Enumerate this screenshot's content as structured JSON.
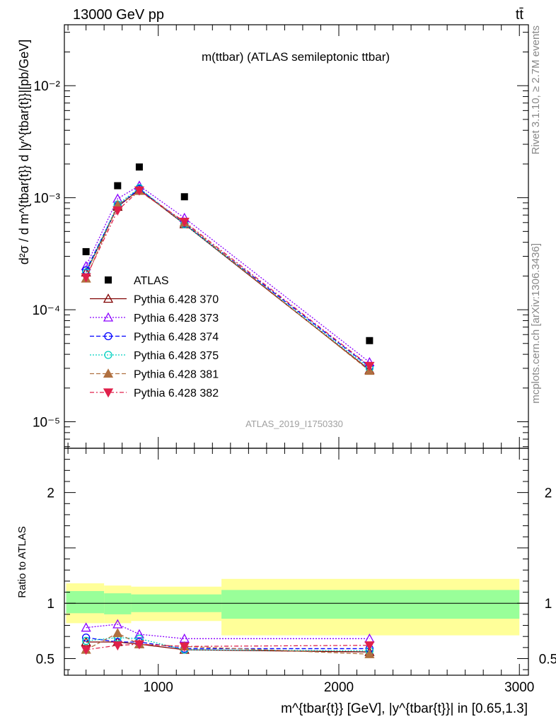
{
  "header": {
    "left": "13000 GeV pp",
    "right": "tt̄"
  },
  "side_text": {
    "rivet": "Rivet 3.1.10, ≥ 2.7M events",
    "mcplots": "mcplots.cern.ch [arXiv:1306.3436]"
  },
  "colors": {
    "atlas": "#000000",
    "p370": "#800000",
    "p373": "#8B00FF",
    "p374": "#0000FF",
    "p375": "#00D0C0",
    "p381": "#B07040",
    "p382": "#E0204A",
    "band_inner": "#99FF99",
    "band_outer": "#FFFF99"
  },
  "chart_data": [
    {
      "type": "scatter",
      "panel": "main",
      "title": "m(ttbar) (ATLAS semileptonic ttbar)",
      "ylabel": "d²σ / d m^{tbar{t}} d |y^{tbar{t}}|[pb/GeV]",
      "yscale": "log",
      "ylim": [
        5.8e-06,
        0.035
      ],
      "xlim": [
        480,
        3050
      ],
      "y_ticks": [
        {
          "value": 1e-05,
          "label": "10⁻⁵"
        },
        {
          "value": 0.0001,
          "label": "10⁻⁴"
        },
        {
          "value": 0.001,
          "label": "10⁻³"
        },
        {
          "value": 0.01,
          "label": "10⁻²"
        }
      ],
      "analysis_label": "ATLAS_2019_I1750330",
      "x": [
        600,
        775,
        895,
        1145,
        2170
      ],
      "series": [
        {
          "name": "ATLAS",
          "key": "atlas",
          "marker": "square",
          "values": [
            0.00033,
            0.00128,
            0.00188,
            0.00102,
            5.3e-05
          ]
        },
        {
          "name": "Pythia 6.428 370",
          "key": "p370",
          "marker": "triangle-open",
          "line": "solid",
          "values": [
            0.000215,
            0.00083,
            0.00118,
            0.00058,
            2.9e-05
          ]
        },
        {
          "name": "Pythia 6.428 373",
          "key": "p373",
          "marker": "triangle-open",
          "line": "dotted",
          "values": [
            0.000245,
            0.00098,
            0.00128,
            0.00066,
            3.4e-05
          ]
        },
        {
          "name": "Pythia 6.428 374",
          "key": "p374",
          "marker": "circle-open",
          "line": "dashed",
          "values": [
            0.000225,
            0.00084,
            0.0012,
            0.00059,
            3.1e-05
          ]
        },
        {
          "name": "Pythia 6.428 375",
          "key": "p375",
          "marker": "circle-open",
          "line": "dotted",
          "values": [
            0.000215,
            0.00087,
            0.00122,
            0.00058,
            3e-05
          ]
        },
        {
          "name": "Pythia 6.428 381",
          "key": "p381",
          "marker": "triangle-filled",
          "line": "dashed",
          "values": [
            0.00019,
            0.00086,
            0.00115,
            0.0006,
            2.85e-05
          ]
        },
        {
          "name": "Pythia 6.428 382",
          "key": "p382",
          "marker": "triangle-down-filled",
          "line": "dashdot",
          "values": [
            0.000195,
            0.00077,
            0.00116,
            0.00061,
            3.15e-05
          ]
        }
      ]
    },
    {
      "type": "line",
      "panel": "ratio",
      "ylabel": "Ratio to ATLAS",
      "xlabel": "m^{tbar{t}} [GeV], |y^{tbar{t}}| in [0.65,1.3]",
      "ylim": [
        0.35,
        2.4
      ],
      "xlim": [
        480,
        3050
      ],
      "x_ticks": [
        {
          "value": 1000,
          "label": "1000"
        },
        {
          "value": 2000,
          "label": "2000"
        },
        {
          "value": 3000,
          "label": "3000"
        }
      ],
      "y_ticks": [
        {
          "value": 0.5,
          "label": "0.5"
        },
        {
          "value": 1,
          "label": "1"
        },
        {
          "value": 2,
          "label": "2"
        }
      ],
      "bands": [
        {
          "x0": 490,
          "x1": 700,
          "inner": [
            0.91,
            1.11
          ],
          "outer": [
            0.82,
            1.18
          ]
        },
        {
          "x0": 700,
          "x1": 850,
          "inner": [
            0.9,
            1.09
          ],
          "outer": [
            0.82,
            1.16
          ]
        },
        {
          "x0": 850,
          "x1": 1350,
          "inner": [
            0.92,
            1.08
          ],
          "outer": [
            0.84,
            1.15
          ]
        },
        {
          "x0": 1350,
          "x1": 3000,
          "inner": [
            0.86,
            1.12
          ],
          "outer": [
            0.71,
            1.22
          ]
        }
      ],
      "x": [
        600,
        775,
        895,
        1145,
        2170
      ],
      "series": [
        {
          "name": "Pythia 6.428 370",
          "key": "p370",
          "marker": "triangle-open",
          "line": "solid",
          "values": [
            0.65,
            0.65,
            0.63,
            0.58,
            0.56
          ]
        },
        {
          "name": "Pythia 6.428 373",
          "key": "p373",
          "marker": "triangle-open",
          "line": "dotted",
          "values": [
            0.78,
            0.81,
            0.72,
            0.68,
            0.68
          ]
        },
        {
          "name": "Pythia 6.428 374",
          "key": "p374",
          "marker": "circle-open",
          "line": "dashed",
          "values": [
            0.69,
            0.65,
            0.65,
            0.59,
            0.59
          ]
        },
        {
          "name": "Pythia 6.428 375",
          "key": "p375",
          "marker": "circle-open",
          "line": "dotted",
          "values": [
            0.66,
            0.69,
            0.68,
            0.58,
            0.57
          ]
        },
        {
          "name": "Pythia 6.428 381",
          "key": "p381",
          "marker": "triangle-filled",
          "line": "dashed",
          "values": [
            0.58,
            0.73,
            0.63,
            0.61,
            0.54
          ]
        },
        {
          "name": "Pythia 6.428 382",
          "key": "p382",
          "marker": "triangle-down-filled",
          "line": "dashdot",
          "values": [
            0.58,
            0.62,
            0.63,
            0.61,
            0.62
          ]
        }
      ]
    }
  ]
}
